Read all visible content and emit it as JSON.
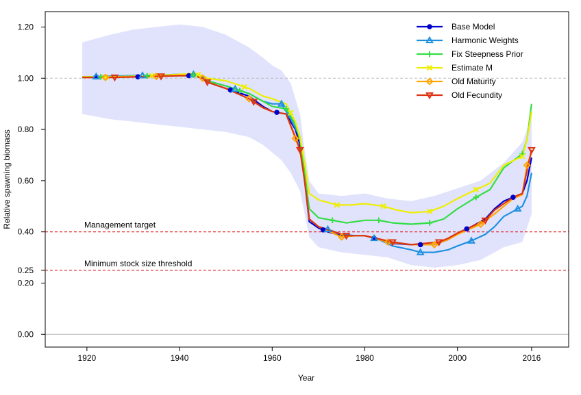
{
  "chart_data": {
    "type": "line",
    "xlabel": "Year",
    "ylabel": "Relative spawning biomass",
    "xlim": [
      1911,
      2024
    ],
    "ylim": [
      -0.05,
      1.26
    ],
    "xticks": [
      1920,
      1940,
      1960,
      1980,
      2000,
      2016
    ],
    "xtick_labels": [
      "1920",
      "1940",
      "1960",
      "1980",
      "2000",
      "2016"
    ],
    "yticks": [
      0,
      0.2,
      0.25,
      0.4,
      0.6,
      0.8,
      1.0,
      1.2
    ],
    "ytick_labels": [
      "0.00",
      "0.20",
      "0.25",
      "0.40",
      "0.60",
      "0.80",
      "1.00",
      "1.20"
    ],
    "grid": false,
    "legend_position": "top-right",
    "reference_lines": [
      {
        "y": 1.0,
        "color": "#bbbbbb",
        "style": "dashed",
        "label": ""
      },
      {
        "y": 0.4,
        "color": "#e41a1c",
        "style": "dashed",
        "label": "Management target"
      },
      {
        "y": 0.25,
        "color": "#e41a1c",
        "style": "dashed",
        "label": "Minimum stock size threshold"
      },
      {
        "y": 0.0,
        "color": "#bbbbbb",
        "style": "solid",
        "label": ""
      }
    ],
    "uncertainty_band": {
      "color": "#e0e3fb",
      "x": [
        1919,
        1925,
        1930,
        1935,
        1940,
        1945,
        1950,
        1955,
        1958,
        1960,
        1962,
        1964,
        1966,
        1967,
        1968,
        1970,
        1975,
        1980,
        1985,
        1990,
        1995,
        2000,
        2005,
        2010,
        2014,
        2016
      ],
      "upper": [
        1.14,
        1.17,
        1.19,
        1.2,
        1.21,
        1.2,
        1.17,
        1.12,
        1.08,
        1.05,
        1.03,
        0.98,
        0.86,
        0.72,
        0.6,
        0.55,
        0.54,
        0.55,
        0.53,
        0.52,
        0.54,
        0.57,
        0.6,
        0.67,
        0.75,
        0.85
      ],
      "lower": [
        0.86,
        0.84,
        0.83,
        0.82,
        0.81,
        0.8,
        0.79,
        0.77,
        0.74,
        0.71,
        0.68,
        0.63,
        0.56,
        0.47,
        0.38,
        0.34,
        0.32,
        0.31,
        0.3,
        0.27,
        0.26,
        0.27,
        0.29,
        0.34,
        0.36,
        0.47
      ]
    },
    "series": [
      {
        "name": "Base Model",
        "color": "#0000cc",
        "marker": "circle",
        "marker_years": [
          1922,
          1931,
          1942,
          1951,
          1961,
          1971,
          1982,
          1992,
          2002,
          2012
        ],
        "x": [
          1919,
          1925,
          1930,
          1935,
          1940,
          1943,
          1945,
          1946,
          1950,
          1955,
          1958,
          1960,
          1963,
          1965,
          1966,
          1967,
          1968,
          1970,
          1972,
          1975,
          1978,
          1980,
          1983,
          1986,
          1990,
          1995,
          1998,
          2000,
          2003,
          2006,
          2008,
          2010,
          2012,
          2014,
          2015,
          2016
        ],
        "y": [
          1.005,
          1.005,
          1.005,
          1.008,
          1.01,
          1.01,
          1.0,
          0.985,
          0.96,
          0.93,
          0.89,
          0.87,
          0.86,
          0.8,
          0.74,
          0.6,
          0.44,
          0.415,
          0.4,
          0.385,
          0.385,
          0.385,
          0.37,
          0.355,
          0.35,
          0.35,
          0.37,
          0.395,
          0.42,
          0.45,
          0.49,
          0.52,
          0.535,
          0.55,
          0.6,
          0.69
        ]
      },
      {
        "name": "Harmonic Weights",
        "color": "#1e90e0",
        "marker": "triangle",
        "marker_years": [
          1922,
          1932,
          1943,
          1952,
          1962,
          1972,
          1982,
          1992,
          2003,
          2013
        ],
        "x": [
          1919,
          1925,
          1930,
          1935,
          1940,
          1943,
          1945,
          1946,
          1950,
          1955,
          1958,
          1960,
          1962,
          1964,
          1966,
          1967,
          1968,
          1970,
          1972,
          1975,
          1978,
          1980,
          1983,
          1986,
          1990,
          1992,
          1995,
          1998,
          2000,
          2003,
          2006,
          2008,
          2010,
          2012,
          2014,
          2015,
          2016
        ],
        "y": [
          1.005,
          1.008,
          1.01,
          1.012,
          1.015,
          1.015,
          1.005,
          0.99,
          0.97,
          0.94,
          0.91,
          0.9,
          0.9,
          0.84,
          0.77,
          0.63,
          0.45,
          0.42,
          0.41,
          0.39,
          0.385,
          0.385,
          0.37,
          0.345,
          0.33,
          0.32,
          0.32,
          0.33,
          0.345,
          0.365,
          0.39,
          0.42,
          0.46,
          0.48,
          0.5,
          0.54,
          0.63
        ]
      },
      {
        "name": "Fix Steepness Prior",
        "color": "#33dd44",
        "marker": "plus",
        "marker_years": [
          1923,
          1933,
          1943,
          1953,
          1963,
          1973,
          1983,
          1994,
          2004,
          2014
        ],
        "x": [
          1919,
          1925,
          1930,
          1935,
          1940,
          1943,
          1945,
          1946,
          1950,
          1955,
          1958,
          1960,
          1963,
          1965,
          1966,
          1967,
          1968,
          1970,
          1973,
          1976,
          1980,
          1983,
          1986,
          1990,
          1994,
          1997,
          2000,
          2004,
          2007,
          2010,
          2014,
          2015,
          2016
        ],
        "y": [
          1.005,
          1.005,
          1.008,
          1.01,
          1.012,
          1.012,
          1.0,
          0.99,
          0.97,
          0.94,
          0.91,
          0.89,
          0.88,
          0.82,
          0.76,
          0.63,
          0.49,
          0.455,
          0.445,
          0.435,
          0.445,
          0.445,
          0.435,
          0.43,
          0.435,
          0.45,
          0.49,
          0.535,
          0.565,
          0.65,
          0.705,
          0.76,
          0.9
        ]
      },
      {
        "name": "Estimate M",
        "color": "#eeee00",
        "marker": "cross",
        "marker_years": [
          1924,
          1934,
          1944,
          1954,
          1964,
          1974,
          1984,
          1994,
          2004,
          2014
        ],
        "x": [
          1919,
          1925,
          1930,
          1935,
          1940,
          1943,
          1945,
          1946,
          1950,
          1955,
          1958,
          1960,
          1963,
          1965,
          1966,
          1967,
          1968,
          1970,
          1974,
          1977,
          1980,
          1984,
          1987,
          1990,
          1994,
          1997,
          2000,
          2004,
          2007,
          2010,
          2014,
          2015,
          2016
        ],
        "y": [
          1.005,
          1.005,
          1.008,
          1.01,
          1.015,
          1.018,
          1.01,
          1.0,
          0.99,
          0.96,
          0.93,
          0.92,
          0.9,
          0.83,
          0.77,
          0.67,
          0.55,
          0.525,
          0.505,
          0.505,
          0.51,
          0.5,
          0.485,
          0.475,
          0.48,
          0.5,
          0.53,
          0.565,
          0.59,
          0.66,
          0.695,
          0.76,
          0.87
        ]
      },
      {
        "name": "Old Maturity",
        "color": "#ffa500",
        "marker": "diamond",
        "marker_years": [
          1924,
          1935,
          1945,
          1955,
          1965,
          1975,
          1985,
          1995,
          2005,
          2015
        ],
        "x": [
          1919,
          1925,
          1930,
          1935,
          1940,
          1943,
          1945,
          1946,
          1950,
          1955,
          1958,
          1960,
          1963,
          1965,
          1966,
          1967,
          1968,
          1970,
          1975,
          1978,
          1980,
          1985,
          1990,
          1995,
          1998,
          2000,
          2005,
          2008,
          2010,
          2012,
          2014,
          2015,
          2016
        ],
        "y": [
          1.003,
          1.003,
          1.005,
          1.007,
          1.01,
          1.01,
          1.0,
          0.985,
          0.96,
          0.92,
          0.885,
          0.87,
          0.86,
          0.765,
          0.72,
          0.6,
          0.45,
          0.42,
          0.38,
          0.385,
          0.385,
          0.36,
          0.35,
          0.35,
          0.37,
          0.39,
          0.43,
          0.47,
          0.5,
          0.53,
          0.545,
          0.66,
          0.71
        ]
      },
      {
        "name": "Old Fecundity",
        "color": "#dd3311",
        "marker": "invtriangle",
        "marker_years": [
          1926,
          1936,
          1946,
          1956,
          1966,
          1976,
          1986,
          1996,
          2006,
          2016
        ],
        "x": [
          1919,
          1925,
          1930,
          1935,
          1940,
          1943,
          1945,
          1946,
          1950,
          1955,
          1958,
          1960,
          1963,
          1965,
          1966,
          1967,
          1968,
          1970,
          1976,
          1978,
          1980,
          1986,
          1990,
          1996,
          1998,
          2000,
          2006,
          2008,
          2010,
          2012,
          2014,
          2015,
          2016
        ],
        "y": [
          1.003,
          1.003,
          1.005,
          1.007,
          1.01,
          1.01,
          1.0,
          0.985,
          0.96,
          0.92,
          0.885,
          0.87,
          0.86,
          0.77,
          0.72,
          0.6,
          0.45,
          0.42,
          0.385,
          0.385,
          0.385,
          0.36,
          0.35,
          0.36,
          0.375,
          0.395,
          0.445,
          0.485,
          0.51,
          0.535,
          0.55,
          0.64,
          0.72
        ]
      }
    ]
  }
}
